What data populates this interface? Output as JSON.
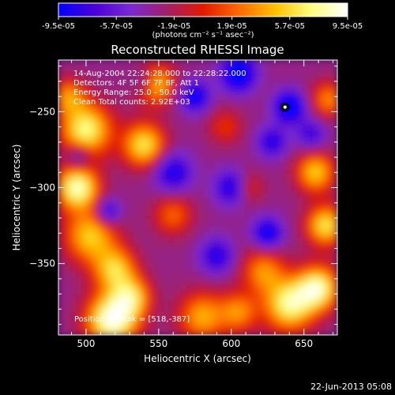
{
  "colorbar": {
    "tick_labels": [
      "-9.5e-05",
      "-5.7e-05",
      "-1.9e-05",
      "1.9e-05",
      "5.7e-05",
      "9.5e-05"
    ],
    "unit_label": "(photons cm⁻² s⁻¹ asec⁻²)",
    "colors": [
      "#0000ff",
      "#4a00d8",
      "#7a2ad0",
      "#a0206a",
      "#e01a00",
      "#ff6a00",
      "#ffc000",
      "#ffff80",
      "#ffffff"
    ]
  },
  "chart_data": {
    "type": "heatmap",
    "title": "Reconstructed RHESSI Image",
    "xlabel": "Heliocentric X (arcsec)",
    "ylabel": "Heliocentric Y (arcsec)",
    "xlim": [
      481,
      673
    ],
    "ylim": [
      -397,
      -216
    ],
    "x_ticks": [
      500,
      550,
      600,
      650
    ],
    "y_ticks": [
      -250,
      -300,
      -350
    ],
    "x_tick_labels": [
      "500",
      "550",
      "600",
      "650"
    ],
    "y_tick_labels": [
      "−250",
      "−300",
      "−350"
    ],
    "value_range": [
      -9.5e-05,
      9.5e-05
    ],
    "peak": {
      "x": 518,
      "y": -387,
      "label": "Position of Peak = [518,-387]"
    },
    "marker": {
      "x": 637,
      "y": -247
    },
    "annotations": [
      "14-Aug-2004 22:24:28.000 to 22:28:22.000",
      "Detectors: 4F 5F 6F 7F 8F, Att 1",
      "Energy Range: 25.0 - 50.0 keV",
      "Clean    Total counts: 2.92E+03"
    ]
  },
  "footer": {
    "timestamp": "22-Jun-2013 05:08"
  }
}
